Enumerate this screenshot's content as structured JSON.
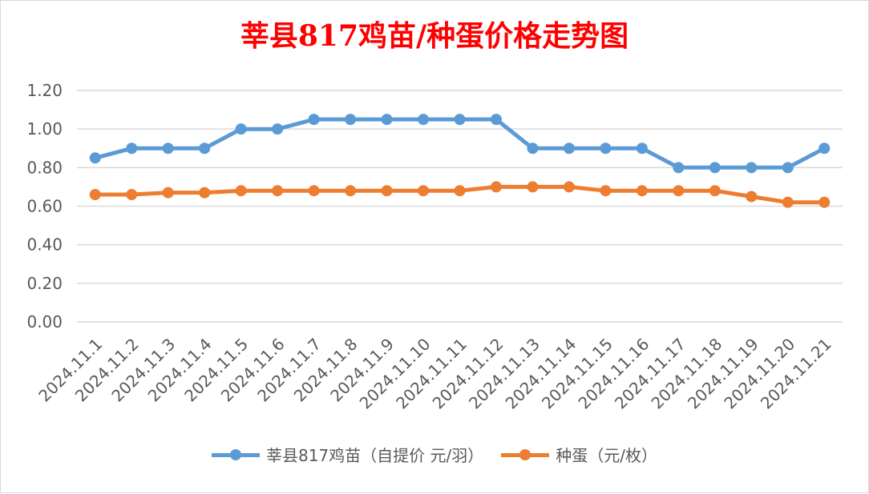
{
  "chart_data": {
    "type": "line",
    "title": "莘县817鸡苗/种蛋价格走势图",
    "xlabel": "",
    "ylabel": "",
    "ylim": [
      0,
      1.2
    ],
    "yticks": [
      "0.00",
      "0.20",
      "0.40",
      "0.60",
      "0.80",
      "1.00",
      "1.20"
    ],
    "grid": true,
    "legend_position": "bottom",
    "categories": [
      "2024.11.1",
      "2024.11.2",
      "2024.11.3",
      "2024.11.4",
      "2024.11.5",
      "2024.11.6",
      "2024.11.7",
      "2024.11.8",
      "2024.11.9",
      "2024.11.10",
      "2024.11.11",
      "2024.11.12",
      "2024.11.13",
      "2024.11.14",
      "2024.11.15",
      "2024.11.16",
      "2024.11.17",
      "2024.11.18",
      "2024.11.19",
      "2024.11.20",
      "2024.11.21"
    ],
    "series": [
      {
        "name": "莘县817鸡苗（自提价 元/羽）",
        "color": "#5b9bd5",
        "values": [
          0.85,
          0.9,
          0.9,
          0.9,
          1.0,
          1.0,
          1.05,
          1.05,
          1.05,
          1.05,
          1.05,
          1.05,
          0.9,
          0.9,
          0.9,
          0.9,
          0.8,
          0.8,
          0.8,
          0.8,
          0.9
        ]
      },
      {
        "name": "种蛋（元/枚）",
        "color": "#ed7d31",
        "values": [
          0.66,
          0.66,
          0.67,
          0.67,
          0.68,
          0.68,
          0.68,
          0.68,
          0.68,
          0.68,
          0.68,
          0.7,
          0.7,
          0.7,
          0.68,
          0.68,
          0.68,
          0.68,
          0.65,
          0.62,
          0.62
        ]
      }
    ]
  },
  "colors": {
    "title": "#ff0000",
    "grid": "#d9d9d9",
    "axis_text": "#595959"
  }
}
